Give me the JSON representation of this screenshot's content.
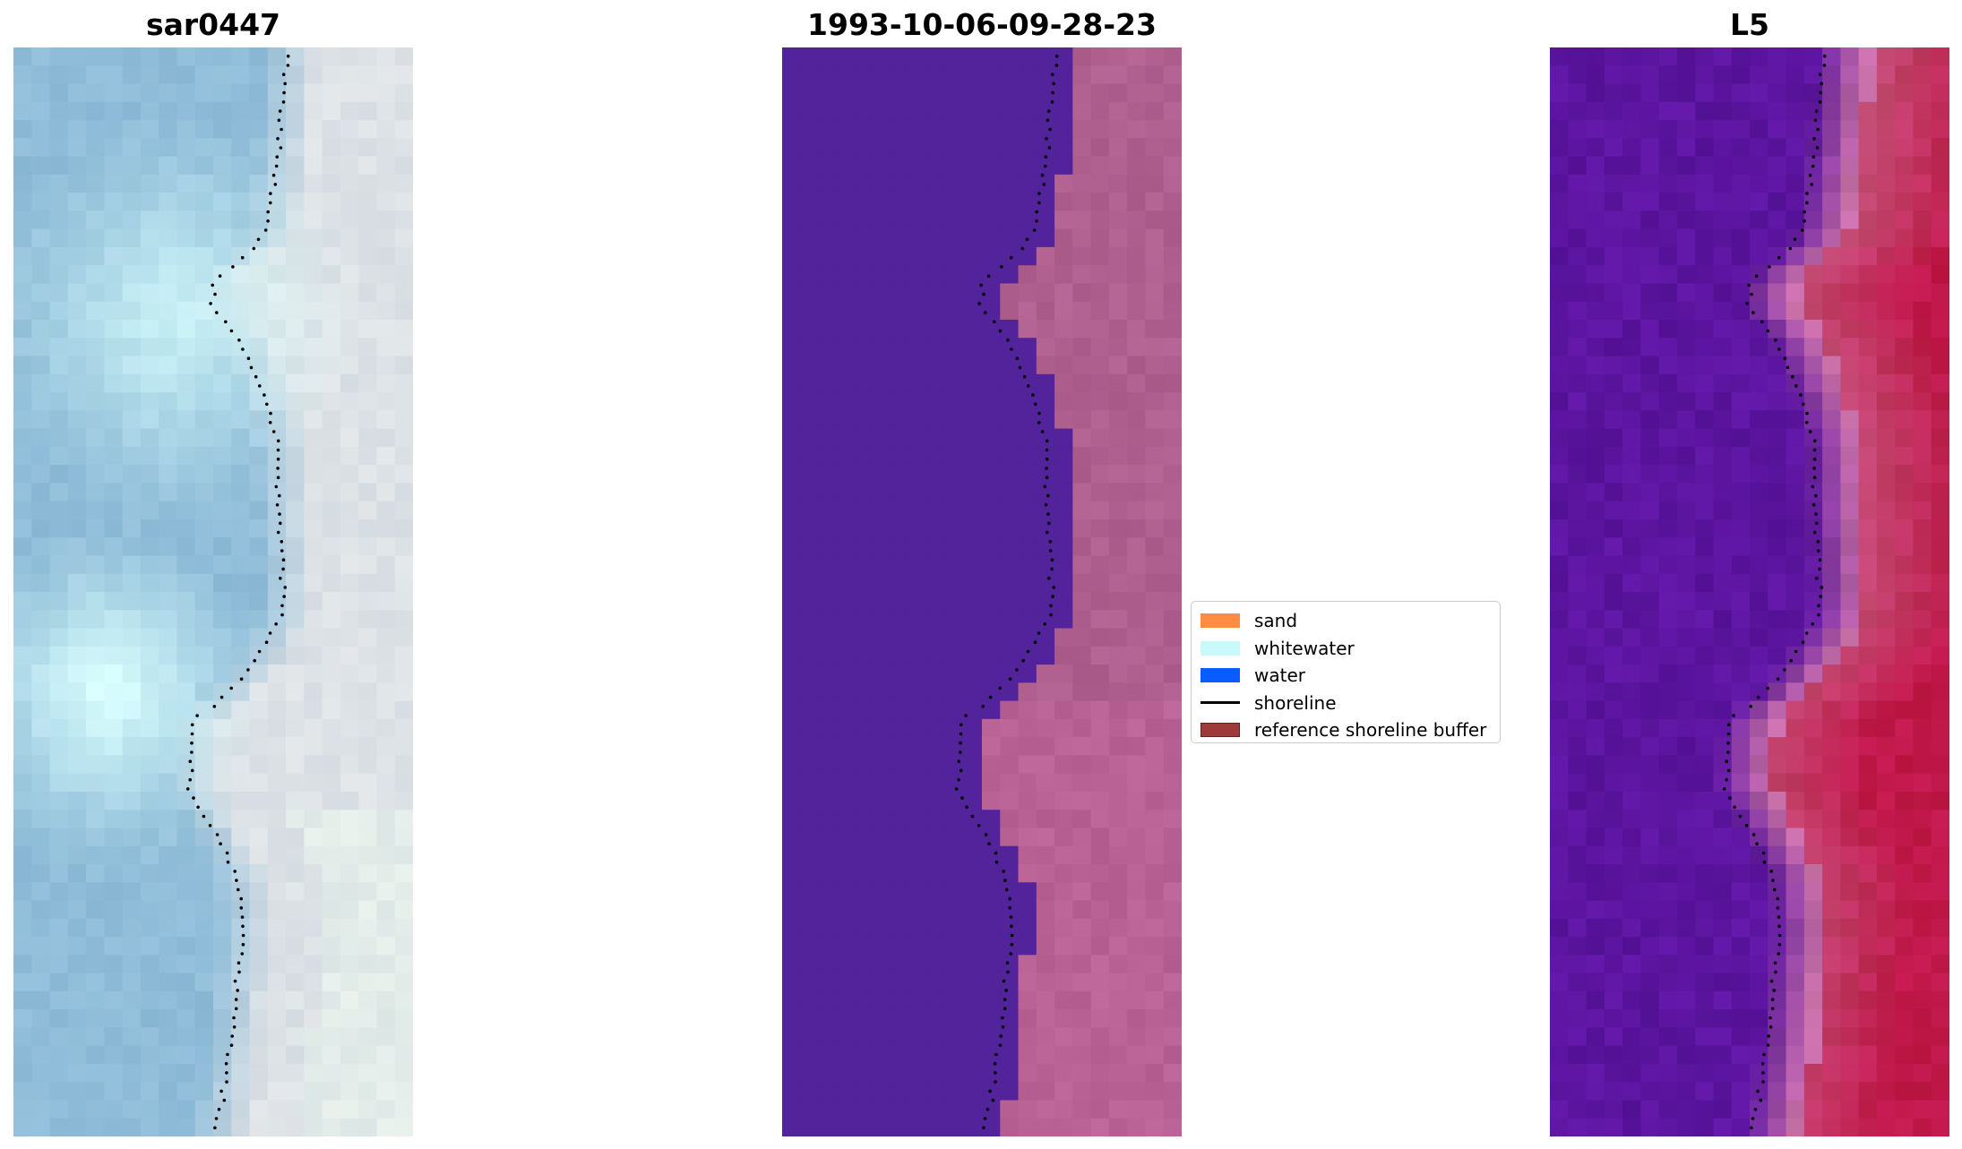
{
  "panels": {
    "left": {
      "title": "sar0447"
    },
    "middle": {
      "title": "1993-10-06-09-28-23"
    },
    "right": {
      "title": "L5"
    }
  },
  "legend": {
    "items": [
      {
        "label": "sand",
        "kind": "patch",
        "color": "#ff8c42"
      },
      {
        "label": "whitewater",
        "kind": "patch",
        "color": "#c8fafa"
      },
      {
        "label": "water",
        "kind": "patch",
        "color": "#0a5cff"
      },
      {
        "label": "shoreline",
        "kind": "line",
        "color": "#000000"
      },
      {
        "label": "reference shoreline buffer",
        "kind": "patch",
        "color": "#9e3a3a"
      }
    ]
  },
  "colors": {
    "water_class": "#52239a",
    "sand_class": "#b0608f",
    "rgb_sea": "#8fbcd8",
    "rgb_beach": "#dde2e6",
    "index_low": "#5c15a0",
    "index_high": "#c0184a"
  }
}
